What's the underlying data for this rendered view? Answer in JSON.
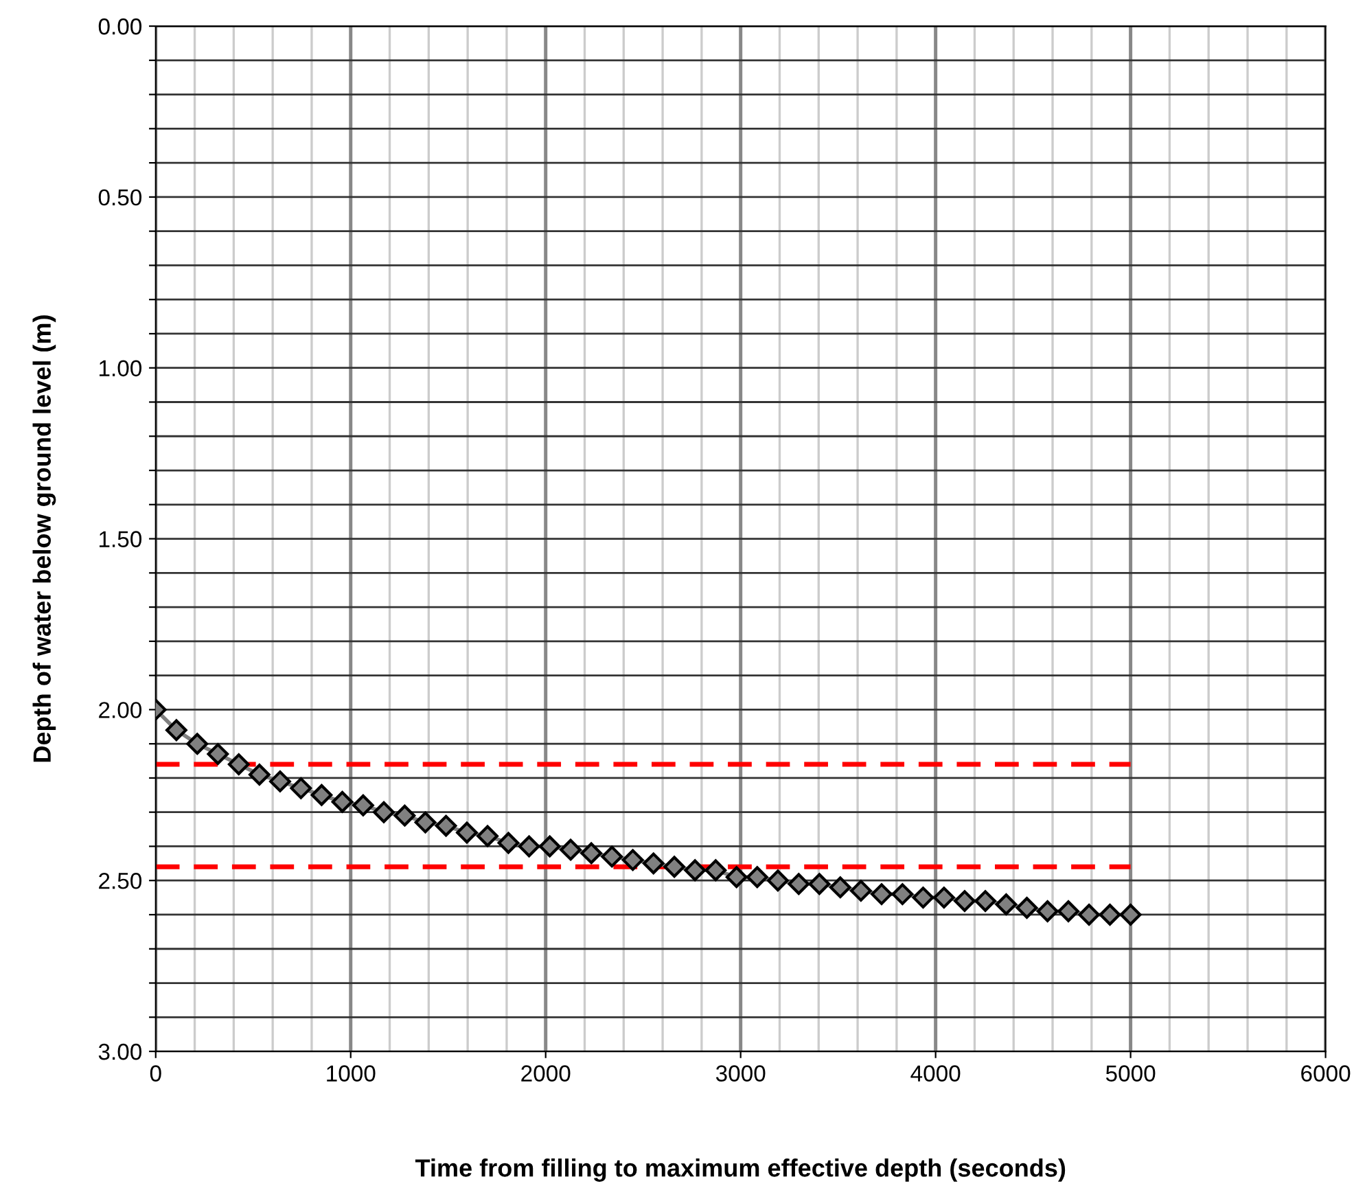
{
  "chart_data": {
    "type": "line",
    "xlabel": "Time from filling to maximum effective depth (seconds)",
    "ylabel": "Depth of water below ground level (m)",
    "x": [
      0,
      106,
      213,
      319,
      426,
      532,
      638,
      745,
      851,
      957,
      1064,
      1170,
      1277,
      1383,
      1489,
      1596,
      1702,
      1809,
      1915,
      2021,
      2128,
      2234,
      2340,
      2447,
      2553,
      2660,
      2766,
      2872,
      2979,
      3085,
      3191,
      3298,
      3404,
      3511,
      3617,
      3723,
      3830,
      3936,
      4043,
      4149,
      4255,
      4362,
      4468,
      4574,
      4681,
      4787,
      4894,
      5000
    ],
    "series": [
      {
        "color": "#808080",
        "values": [
          2.0,
          2.06,
          2.1,
          2.13,
          2.16,
          2.19,
          2.21,
          2.23,
          2.25,
          2.27,
          2.28,
          2.3,
          2.31,
          2.33,
          2.34,
          2.36,
          2.37,
          2.39,
          2.4,
          2.4,
          2.41,
          2.42,
          2.43,
          2.44,
          2.45,
          2.46,
          2.47,
          2.47,
          2.49,
          2.49,
          2.5,
          2.51,
          2.51,
          2.52,
          2.53,
          2.54,
          2.54,
          2.55,
          2.55,
          2.56,
          2.56,
          2.57,
          2.58,
          2.59,
          2.59,
          2.6,
          2.6,
          2.6
        ]
      }
    ],
    "marker": "diamond",
    "line_style": "solid",
    "ref_lines": [
      {
        "axis": "y",
        "value": 2.16,
        "color": "#ff0000",
        "line_style": "dashed"
      },
      {
        "axis": "y",
        "value": 2.46,
        "color": "#ff0000",
        "line_style": "dashed"
      }
    ],
    "xlim": [
      0,
      6000
    ],
    "ylim": [
      3.0,
      0.0
    ],
    "xticks": [
      0,
      {
        "value": 200,
        "label": null
      },
      {
        "value": 400,
        "label": null
      },
      {
        "value": 600,
        "label": null
      },
      {
        "value": 800,
        "label": null
      },
      1000,
      {
        "value": 1200,
        "label": null
      },
      {
        "value": 1400,
        "label": null
      },
      {
        "value": 1600,
        "label": null
      },
      {
        "value": 1800,
        "label": null
      },
      2000,
      {
        "value": 2200,
        "label": null
      },
      {
        "value": 2400,
        "label": null
      },
      {
        "value": 2600,
        "label": null
      },
      {
        "value": 2800,
        "label": null
      },
      3000,
      {
        "value": 3200,
        "label": null
      },
      {
        "value": 3400,
        "label": null
      },
      {
        "value": 3600,
        "label": null
      },
      {
        "value": 3800,
        "label": null
      },
      4000,
      {
        "value": 4200,
        "label": null
      },
      {
        "value": 4400,
        "label": null
      },
      {
        "value": 4600,
        "label": null
      },
      {
        "value": 4800,
        "label": null
      },
      5000,
      {
        "value": 5200,
        "label": null
      },
      {
        "value": 5400,
        "label": null
      },
      {
        "value": 5600,
        "label": null
      },
      {
        "value": 5800,
        "label": null
      },
      6000
    ],
    "yticks": [
      {
        "value": 0,
        "label": "0.00"
      },
      {
        "value": 0.1,
        "label": null
      },
      {
        "value": 0.2,
        "label": null
      },
      {
        "value": 0.3,
        "label": null
      },
      {
        "value": 0.4,
        "label": null
      },
      {
        "value": 0.5,
        "label": "0.50"
      },
      {
        "value": 0.6,
        "label": null
      },
      {
        "value": 0.7,
        "label": null
      },
      {
        "value": 0.8,
        "label": null
      },
      {
        "value": 0.9,
        "label": null
      },
      {
        "value": 1.0,
        "label": "1.00"
      },
      {
        "value": 1.1,
        "label": null
      },
      {
        "value": 1.2,
        "label": null
      },
      {
        "value": 1.3,
        "label": null
      },
      {
        "value": 1.4,
        "label": null
      },
      {
        "value": 1.5,
        "label": "1.50"
      },
      {
        "value": 1.6,
        "label": null
      },
      {
        "value": 1.7,
        "label": null
      },
      {
        "value": 1.8,
        "label": null
      },
      {
        "value": 1.9,
        "label": null
      },
      {
        "value": 2.0,
        "label": "2.00"
      },
      {
        "value": 2.1,
        "label": null
      },
      {
        "value": 2.2,
        "label": null
      },
      {
        "value": 2.3,
        "label": null
      },
      {
        "value": 2.4,
        "label": null
      },
      {
        "value": 2.5,
        "label": "2.50"
      },
      {
        "value": 2.6,
        "label": null
      },
      {
        "value": 2.7,
        "label": null
      },
      {
        "value": 2.8,
        "label": null
      },
      {
        "value": 2.9,
        "label": null
      },
      {
        "value": 3.0,
        "label": "3.00"
      }
    ],
    "grid": true
  }
}
